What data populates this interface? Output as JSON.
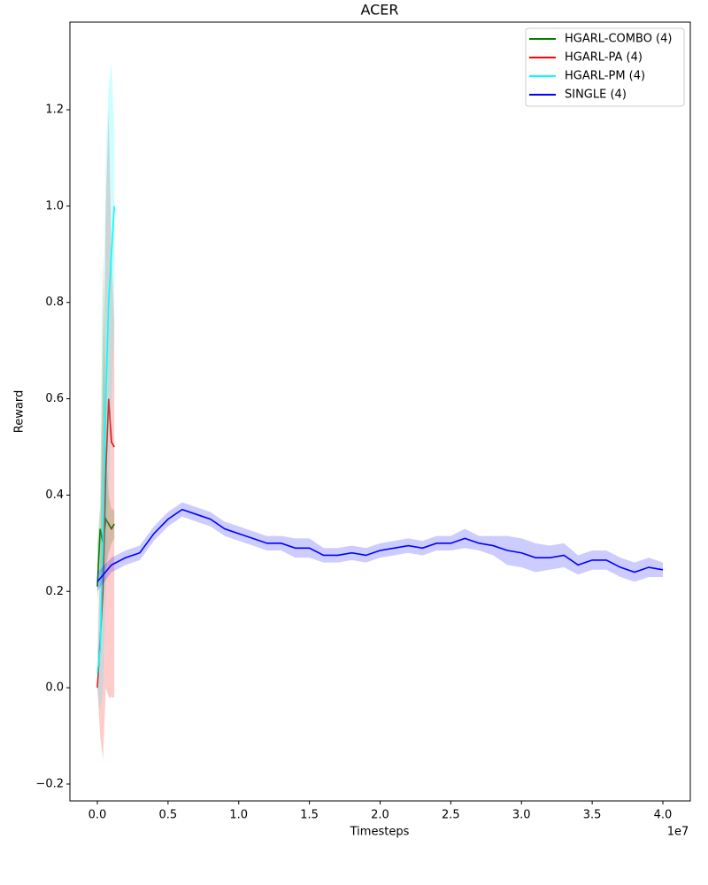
{
  "chart_data": {
    "type": "line",
    "title": "ACER",
    "x_label": "Timesteps",
    "y_label": "Reward",
    "x_offset_label": "1e7",
    "xlim": [
      -0.194,
      4.194
    ],
    "ylim": [
      -0.235,
      1.382
    ],
    "xticks": [
      {
        "value": 0,
        "label": "0.0"
      },
      0.5,
      {
        "value": 1,
        "label": "1.0"
      },
      1.5,
      {
        "value": 2,
        "label": "2.0"
      },
      2.5,
      {
        "value": 3,
        "label": "3.0"
      },
      3.5,
      {
        "value": 4,
        "label": "4.0"
      }
    ],
    "yticks": [
      {
        "value": -0.2,
        "label": "−0.2"
      },
      {
        "value": 0,
        "label": "0.0"
      },
      0.2,
      0.4,
      0.6,
      0.8,
      {
        "value": 1,
        "label": "1.0"
      },
      1.2
    ],
    "grid": false,
    "legend": "upper right",
    "band_opacity": 0.2,
    "series": [
      {
        "name": "HGARL-COMBO (4)",
        "color": "#008000",
        "x": [
          0,
          0.02,
          0.04,
          0.06,
          0.08,
          0.1,
          0.12
        ],
        "values": [
          0.21,
          0.33,
          0.3,
          0.35,
          0.34,
          0.33,
          0.34
        ],
        "lower": [
          0.18,
          0.25,
          0.2,
          0.25,
          0.28,
          0.3,
          0.31
        ],
        "upper": [
          0.3,
          0.38,
          0.9,
          0.5,
          0.4,
          0.37,
          0.37
        ]
      },
      {
        "name": "HGARL-PA (4)",
        "color": "#ff0000",
        "x": [
          0,
          0.02,
          0.04,
          0.06,
          0.08,
          0.1,
          0.12
        ],
        "values": [
          0.0,
          0.1,
          0.2,
          0.45,
          0.6,
          0.51,
          0.5
        ],
        "lower": [
          0,
          -0.1,
          -0.15,
          0,
          -0.02,
          -0.02,
          -0.02
        ],
        "upper": [
          0.02,
          0.3,
          0.6,
          1.0,
          1.2,
          0.9,
          0.76
        ]
      },
      {
        "name": "HGARL-PM (4)",
        "color": "#00ffff",
        "x": [
          0,
          0.02,
          0.04,
          0.06,
          0.08,
          0.1,
          0.12
        ],
        "values": [
          0.03,
          0.08,
          0.3,
          0.6,
          0.8,
          0.9,
          1.0
        ],
        "lower": [
          0,
          -0.05,
          0,
          0.2,
          0.4,
          0.6,
          0.75
        ],
        "upper": [
          0.1,
          0.3,
          0.7,
          1.1,
          1.25,
          1.3,
          1.16
        ]
      },
      {
        "name": "SINGLE (4)",
        "color": "#0000ff",
        "x": [
          0,
          0.1,
          0.2,
          0.3,
          0.4,
          0.5,
          0.6,
          0.7,
          0.8,
          0.9,
          1,
          1.1,
          1.2,
          1.3,
          1.4,
          1.5,
          1.6,
          1.7,
          1.8,
          1.9,
          2,
          2.1,
          2.2,
          2.3,
          2.4,
          2.5,
          2.6,
          2.7,
          2.8,
          2.9,
          3,
          3.1,
          3.2,
          3.3,
          3.4,
          3.5,
          3.6,
          3.7,
          3.8,
          3.9,
          4
        ],
        "values": [
          0.22,
          0.255,
          0.27,
          0.28,
          0.32,
          0.35,
          0.37,
          0.36,
          0.35,
          0.33,
          0.32,
          0.31,
          0.3,
          0.3,
          0.29,
          0.29,
          0.275,
          0.275,
          0.28,
          0.275,
          0.285,
          0.29,
          0.295,
          0.29,
          0.3,
          0.3,
          0.31,
          0.3,
          0.295,
          0.285,
          0.28,
          0.27,
          0.27,
          0.275,
          0.255,
          0.265,
          0.265,
          0.25,
          0.24,
          0.25,
          0.245
        ],
        "lower": [
          0.2,
          0.24,
          0.255,
          0.265,
          0.305,
          0.335,
          0.355,
          0.345,
          0.335,
          0.315,
          0.305,
          0.295,
          0.285,
          0.285,
          0.27,
          0.27,
          0.26,
          0.26,
          0.265,
          0.26,
          0.27,
          0.275,
          0.28,
          0.275,
          0.285,
          0.285,
          0.29,
          0.285,
          0.275,
          0.255,
          0.25,
          0.24,
          0.245,
          0.25,
          0.235,
          0.245,
          0.245,
          0.23,
          0.22,
          0.23,
          0.23
        ],
        "upper": [
          0.24,
          0.27,
          0.285,
          0.295,
          0.335,
          0.365,
          0.385,
          0.375,
          0.365,
          0.345,
          0.335,
          0.325,
          0.315,
          0.315,
          0.31,
          0.31,
          0.29,
          0.29,
          0.295,
          0.29,
          0.3,
          0.305,
          0.31,
          0.305,
          0.315,
          0.315,
          0.33,
          0.315,
          0.315,
          0.315,
          0.31,
          0.3,
          0.295,
          0.3,
          0.275,
          0.285,
          0.285,
          0.27,
          0.26,
          0.27,
          0.26
        ]
      }
    ]
  }
}
